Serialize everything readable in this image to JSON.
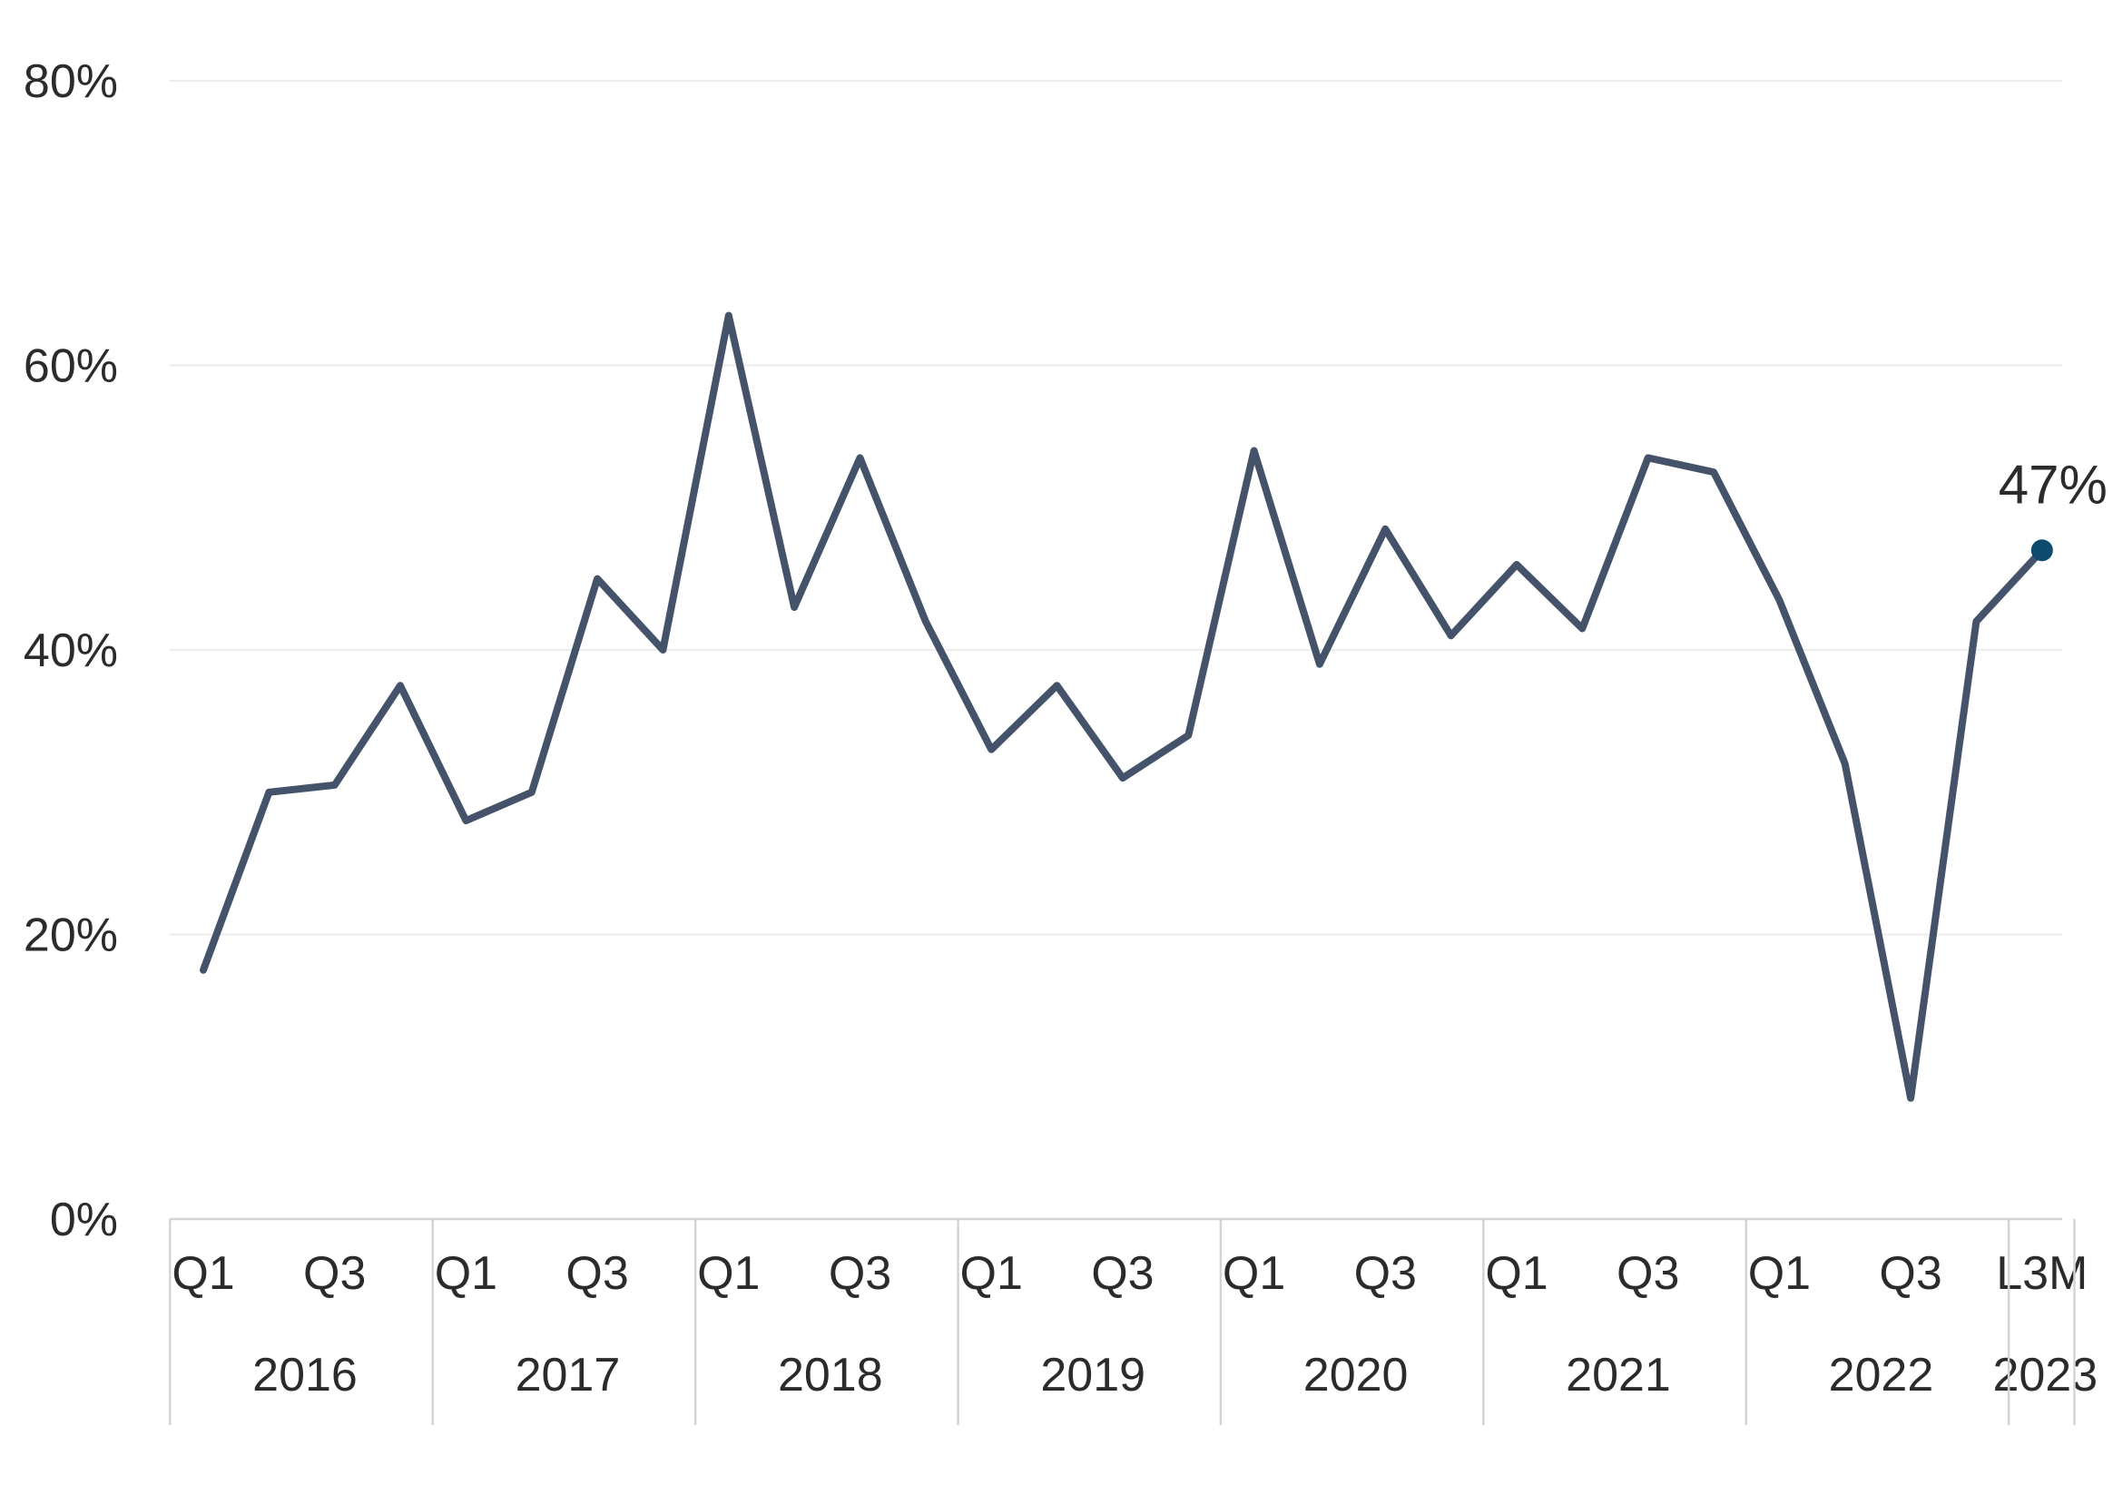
{
  "chart_data": {
    "type": "line",
    "ylim": [
      0,
      80
    ],
    "yticks": [
      "0%",
      "20%",
      "40%",
      "60%",
      "80%"
    ],
    "ytick_values": [
      0,
      20,
      40,
      60,
      80
    ],
    "grid": true,
    "legend": "none",
    "series": [
      {
        "color": "#45536a",
        "x": [
          "2016 Q1",
          "2016 Q2",
          "2016 Q3",
          "2016 Q4",
          "2017 Q1",
          "2017 Q2",
          "2017 Q3",
          "2017 Q4",
          "2018 Q1",
          "2018 Q2",
          "2018 Q3",
          "2018 Q4",
          "2019 Q1",
          "2019 Q2",
          "2019 Q3",
          "2019 Q4",
          "2020 Q1",
          "2020 Q2",
          "2020 Q3",
          "2020 Q4",
          "2021 Q1",
          "2021 Q2",
          "2021 Q3",
          "2021 Q4",
          "2022 Q1",
          "2022 Q2",
          "2022 Q3",
          "2022 Q4",
          "2023 L3M"
        ],
        "values": [
          17.5,
          30,
          30.5,
          37.5,
          28,
          30,
          45,
          40,
          63.5,
          43,
          53.5,
          42,
          33,
          37.5,
          31,
          34,
          54,
          39,
          48.5,
          41,
          46,
          41.5,
          53.5,
          52.5,
          43.5,
          32,
          8.5,
          42,
          47
        ]
      }
    ],
    "groups": [
      {
        "label": "2016",
        "ticks": [
          "Q1",
          "",
          "Q3",
          ""
        ]
      },
      {
        "label": "2017",
        "ticks": [
          "Q1",
          "",
          "Q3",
          ""
        ]
      },
      {
        "label": "2018",
        "ticks": [
          "Q1",
          "",
          "Q3",
          ""
        ]
      },
      {
        "label": "2019",
        "ticks": [
          "Q1",
          "",
          "Q3",
          ""
        ]
      },
      {
        "label": "2020",
        "ticks": [
          "Q1",
          "",
          "Q3",
          ""
        ]
      },
      {
        "label": "2021",
        "ticks": [
          "Q1",
          "",
          "Q3",
          ""
        ]
      },
      {
        "label": "2022",
        "ticks": [
          "Q1",
          "",
          "Q3",
          ""
        ]
      },
      {
        "label": "2023",
        "ticks": [
          "L3M"
        ]
      }
    ],
    "annotations": [
      {
        "point_index": 28,
        "text": "47%",
        "marker_color": "#0d4a6e"
      }
    ]
  }
}
